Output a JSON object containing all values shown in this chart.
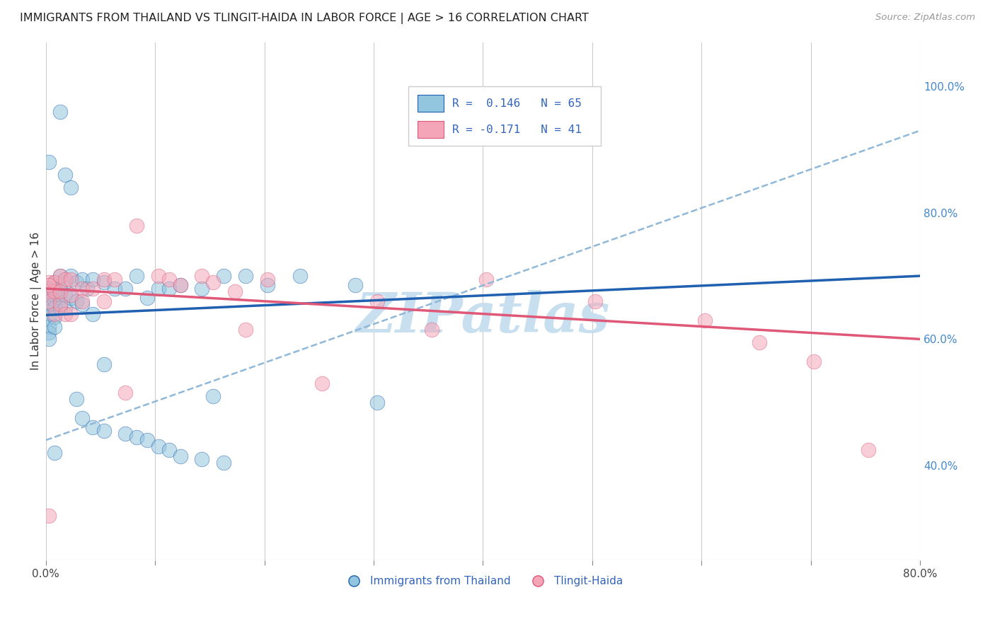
{
  "title": "IMMIGRANTS FROM THAILAND VS TLINGIT-HAIDA IN LABOR FORCE | AGE > 16 CORRELATION CHART",
  "source": "Source: ZipAtlas.com",
  "ylabel": "In Labor Force | Age > 16",
  "legend_item_1": "Immigrants from Thailand",
  "legend_item_2": "Tlingit-Haida",
  "xlim": [
    0.0,
    0.8
  ],
  "ylim": [
    0.25,
    1.07
  ],
  "xticks": [
    0.0,
    0.1,
    0.2,
    0.3,
    0.4,
    0.5,
    0.6,
    0.7,
    0.8
  ],
  "xticklabels": [
    "0.0%",
    "",
    "",
    "",
    "",
    "",
    "",
    "",
    "80.0%"
  ],
  "yticks_right": [
    0.4,
    0.6,
    0.8,
    1.0
  ],
  "yticklabels_right": [
    "40.0%",
    "60.0%",
    "80.0%",
    "100.0%"
  ],
  "color_blue": "#92c5de",
  "color_pink": "#f4a6b8",
  "color_trend_blue": "#2060b0",
  "color_trend_pink": "#e05878",
  "color_dashed": "#90b8d8",
  "watermark": "ZIPatlas",
  "watermark_color": "#c8dff0",
  "blue_x": [
    0.003,
    0.003,
    0.003,
    0.003,
    0.003,
    0.003,
    0.003,
    0.003,
    0.008,
    0.008,
    0.008,
    0.008,
    0.008,
    0.008,
    0.008,
    0.013,
    0.013,
    0.013,
    0.013,
    0.018,
    0.018,
    0.018,
    0.023,
    0.023,
    0.028,
    0.028,
    0.033,
    0.033,
    0.038,
    0.043,
    0.043,
    0.053,
    0.053,
    0.063,
    0.073,
    0.083,
    0.093,
    0.103,
    0.113,
    0.123,
    0.143,
    0.153,
    0.163,
    0.183,
    0.203,
    0.233,
    0.283,
    0.303,
    0.003,
    0.008,
    0.013,
    0.018,
    0.023,
    0.028,
    0.033,
    0.043,
    0.053,
    0.073,
    0.083,
    0.093,
    0.103,
    0.113,
    0.123,
    0.143,
    0.163
  ],
  "blue_y": [
    0.68,
    0.675,
    0.665,
    0.65,
    0.635,
    0.62,
    0.61,
    0.6,
    0.69,
    0.68,
    0.67,
    0.66,
    0.65,
    0.635,
    0.62,
    0.7,
    0.68,
    0.665,
    0.65,
    0.69,
    0.67,
    0.65,
    0.7,
    0.665,
    0.69,
    0.66,
    0.695,
    0.655,
    0.68,
    0.695,
    0.64,
    0.69,
    0.56,
    0.68,
    0.68,
    0.7,
    0.665,
    0.68,
    0.68,
    0.685,
    0.68,
    0.51,
    0.7,
    0.7,
    0.685,
    0.7,
    0.685,
    0.5,
    0.88,
    0.42,
    0.96,
    0.86,
    0.84,
    0.505,
    0.475,
    0.46,
    0.455,
    0.45,
    0.445,
    0.44,
    0.43,
    0.425,
    0.415,
    0.41,
    0.405
  ],
  "pink_x": [
    0.003,
    0.003,
    0.003,
    0.003,
    0.008,
    0.008,
    0.008,
    0.013,
    0.013,
    0.018,
    0.018,
    0.023,
    0.023,
    0.033,
    0.043,
    0.053,
    0.063,
    0.083,
    0.103,
    0.113,
    0.123,
    0.143,
    0.153,
    0.173,
    0.183,
    0.203,
    0.253,
    0.303,
    0.353,
    0.403,
    0.503,
    0.603,
    0.653,
    0.703,
    0.753,
    0.003,
    0.013,
    0.023,
    0.033,
    0.053,
    0.073
  ],
  "pink_y": [
    0.69,
    0.675,
    0.66,
    0.32,
    0.69,
    0.675,
    0.64,
    0.7,
    0.655,
    0.695,
    0.64,
    0.695,
    0.64,
    0.68,
    0.68,
    0.695,
    0.695,
    0.78,
    0.7,
    0.695,
    0.685,
    0.7,
    0.69,
    0.675,
    0.615,
    0.695,
    0.53,
    0.66,
    0.615,
    0.695,
    0.66,
    0.63,
    0.595,
    0.565,
    0.425,
    0.685,
    0.675,
    0.67,
    0.66,
    0.66,
    0.515
  ],
  "blue_trend": [
    0.0,
    0.8,
    0.638,
    0.7
  ],
  "pink_trend": [
    0.0,
    0.8,
    0.68,
    0.6
  ],
  "dashed_trend": [
    0.0,
    0.8,
    0.44,
    0.93
  ]
}
